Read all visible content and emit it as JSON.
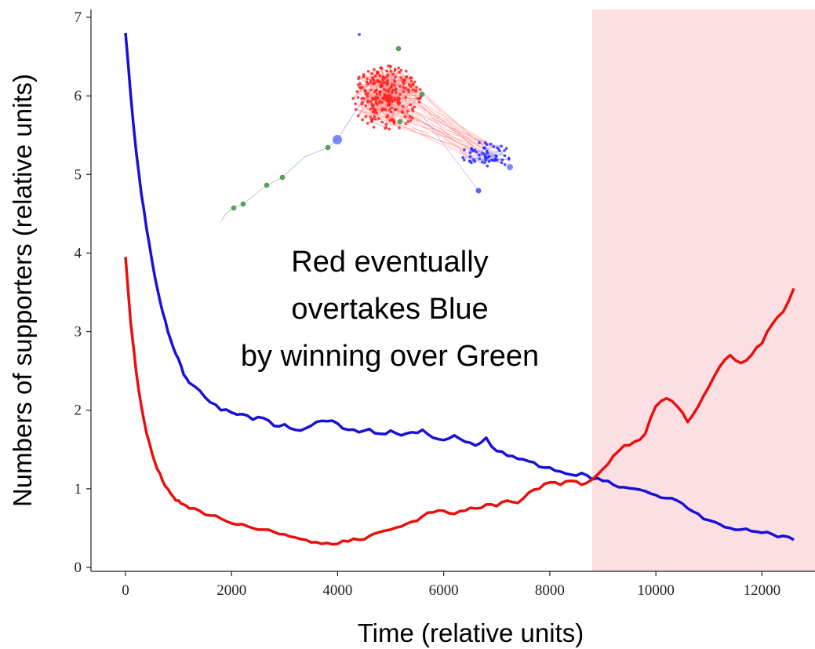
{
  "chart_data": {
    "type": "line",
    "title": "",
    "xlabel": "Time (relative units)",
    "ylabel": "Numbers of supporters (relative units)",
    "xlim": [
      -650,
      13000
    ],
    "ylim": [
      -0.05,
      7.1
    ],
    "x_ticks": [
      0,
      2000,
      4000,
      6000,
      8000,
      10000,
      12000
    ],
    "y_ticks": [
      0,
      1,
      2,
      3,
      4,
      5,
      6,
      7
    ],
    "grid": false,
    "legend": "none",
    "shaded_region": {
      "x_start": 8800,
      "x_end": 13000,
      "color": "#fbdfe2"
    },
    "annotation": [
      "Red eventually",
      "overtakes Blue",
      "by winning over Green"
    ],
    "series": [
      {
        "color": "#1a10d6",
        "x": [
          0,
          100,
          200,
          300,
          400,
          500,
          600,
          700,
          800,
          900,
          1000,
          1100,
          1200,
          1400,
          1600,
          1800,
          2000,
          2200,
          2400,
          2600,
          2800,
          3000,
          3200,
          3400,
          3600,
          3800,
          4000,
          4200,
          4400,
          4600,
          4800,
          5000,
          5200,
          5400,
          5600,
          5800,
          6000,
          6200,
          6400,
          6600,
          6800,
          7000,
          7200,
          7400,
          7600,
          7800,
          8000,
          8200,
          8400,
          8600,
          8800,
          9000,
          9200,
          9400,
          9600,
          9800,
          10000,
          10200,
          10400,
          10600,
          10800,
          11000,
          11200,
          11400,
          11600,
          11800,
          12000,
          12200,
          12400,
          12600
        ],
        "y": [
          6.8,
          6.0,
          5.3,
          4.75,
          4.3,
          3.9,
          3.55,
          3.25,
          3.0,
          2.8,
          2.65,
          2.45,
          2.35,
          2.25,
          2.1,
          2.0,
          1.97,
          1.95,
          1.88,
          1.9,
          1.8,
          1.82,
          1.75,
          1.77,
          1.85,
          1.86,
          1.83,
          1.75,
          1.72,
          1.76,
          1.7,
          1.74,
          1.68,
          1.72,
          1.75,
          1.65,
          1.62,
          1.68,
          1.6,
          1.55,
          1.65,
          1.48,
          1.42,
          1.38,
          1.35,
          1.28,
          1.27,
          1.22,
          1.18,
          1.2,
          1.12,
          1.1,
          1.05,
          1.02,
          1.0,
          0.97,
          0.92,
          0.88,
          0.85,
          0.75,
          0.68,
          0.6,
          0.55,
          0.5,
          0.48,
          0.46,
          0.44,
          0.42,
          0.4,
          0.35
        ]
      },
      {
        "color": "#e8100f",
        "x": [
          0,
          100,
          200,
          300,
          400,
          500,
          600,
          700,
          800,
          900,
          1000,
          1100,
          1200,
          1400,
          1600,
          1800,
          2000,
          2200,
          2400,
          2600,
          2800,
          3000,
          3200,
          3400,
          3600,
          3800,
          4000,
          4200,
          4400,
          4600,
          4800,
          5000,
          5200,
          5400,
          5600,
          5800,
          6000,
          6200,
          6400,
          6600,
          6800,
          7000,
          7200,
          7400,
          7600,
          7800,
          8000,
          8200,
          8400,
          8600,
          8800,
          9000,
          9200,
          9400,
          9600,
          9800,
          10000,
          10200,
          10400,
          10600,
          10800,
          11000,
          11200,
          11400,
          11600,
          11800,
          12000,
          12200,
          12400,
          12600
        ],
        "y": [
          3.95,
          3.1,
          2.5,
          2.05,
          1.7,
          1.45,
          1.25,
          1.1,
          1.0,
          0.9,
          0.85,
          0.8,
          0.75,
          0.72,
          0.66,
          0.62,
          0.56,
          0.55,
          0.5,
          0.48,
          0.45,
          0.42,
          0.38,
          0.35,
          0.32,
          0.31,
          0.3,
          0.33,
          0.35,
          0.4,
          0.45,
          0.48,
          0.52,
          0.58,
          0.65,
          0.7,
          0.72,
          0.68,
          0.72,
          0.75,
          0.8,
          0.78,
          0.85,
          0.82,
          0.95,
          1.0,
          1.08,
          1.05,
          1.1,
          1.05,
          1.12,
          1.25,
          1.42,
          1.55,
          1.6,
          1.7,
          2.05,
          2.15,
          2.05,
          1.85,
          2.05,
          2.3,
          2.55,
          2.7,
          2.6,
          2.7,
          2.85,
          3.1,
          3.25,
          3.55
        ]
      }
    ]
  }
}
